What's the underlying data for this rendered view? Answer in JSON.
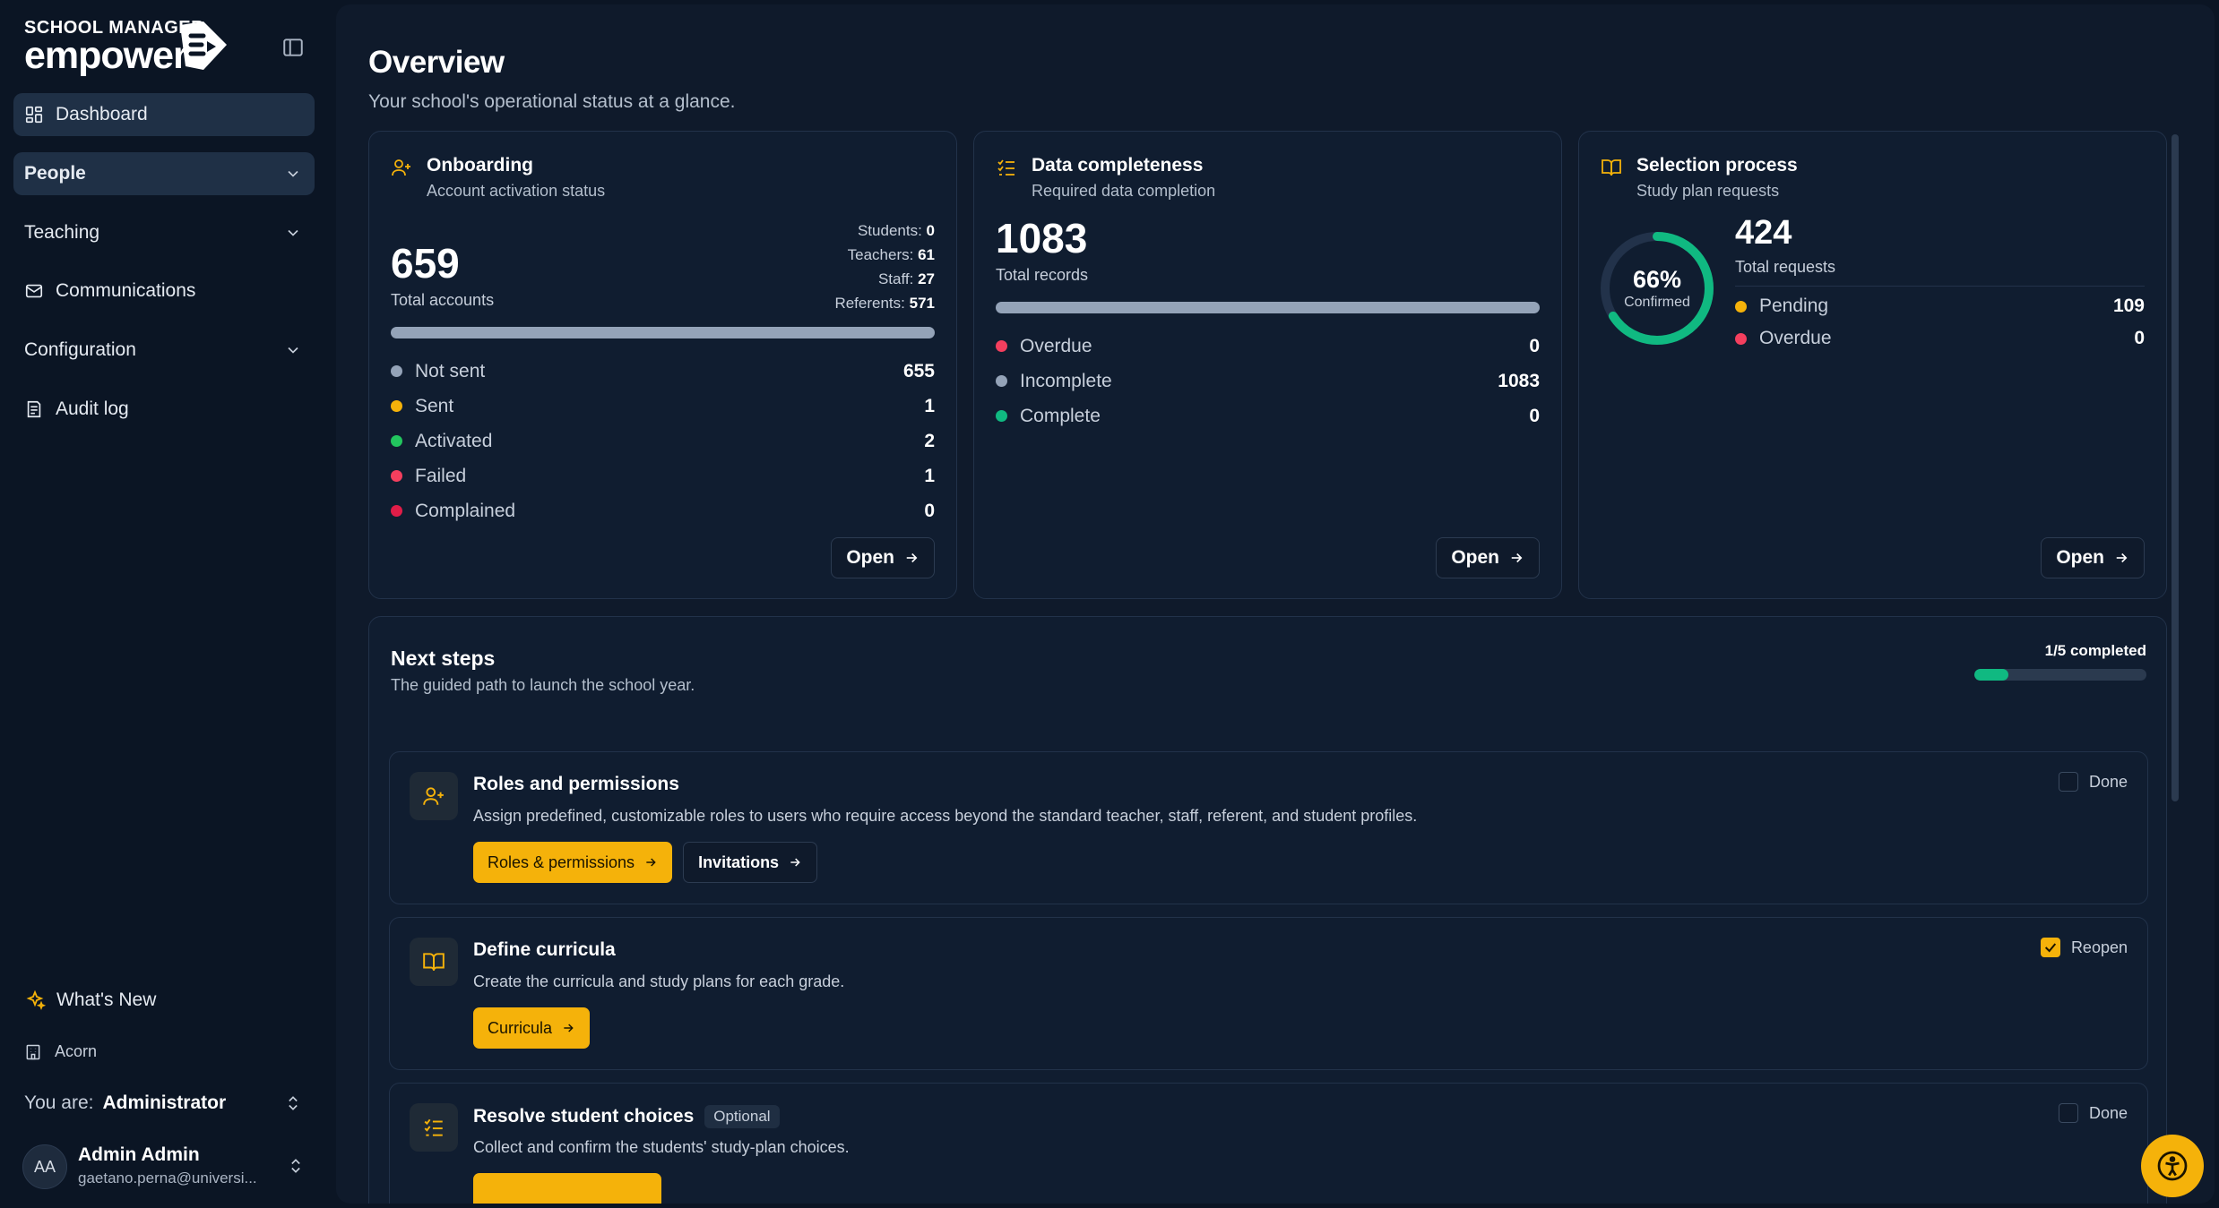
{
  "brand": {
    "top": "SCHOOL MANAGER",
    "main": "empower"
  },
  "sidebar": {
    "items": [
      {
        "label": "Dashboard"
      },
      {
        "label": "People"
      },
      {
        "label": "Teaching"
      },
      {
        "label": "Communications"
      },
      {
        "label": "Configuration"
      },
      {
        "label": "Audit log"
      }
    ],
    "whats_new": "What's New",
    "school": "Acorn",
    "role_label": "You are:",
    "role_value": "Administrator",
    "user": {
      "initials": "AA",
      "name": "Admin Admin",
      "email": "gaetano.perna@universi..."
    }
  },
  "page": {
    "title": "Overview",
    "subtitle": "Your school's operational status at a glance."
  },
  "onboarding": {
    "title": "Onboarding",
    "subtitle": "Account activation status",
    "total": "659",
    "total_label": "Total accounts",
    "breakdown": [
      {
        "label": "Students:",
        "value": "0"
      },
      {
        "label": "Teachers:",
        "value": "61"
      },
      {
        "label": "Staff:",
        "value": "27"
      },
      {
        "label": "Referents:",
        "value": "571"
      }
    ],
    "legend": [
      {
        "label": "Not sent",
        "value": "655",
        "color": "#94a3b8"
      },
      {
        "label": "Sent",
        "value": "1",
        "color": "#f5b20a"
      },
      {
        "label": "Activated",
        "value": "2",
        "color": "#22c55e"
      },
      {
        "label": "Failed",
        "value": "1",
        "color": "#f43f5e"
      },
      {
        "label": "Complained",
        "value": "0",
        "color": "#e11d48"
      }
    ],
    "open": "Open"
  },
  "data_completeness": {
    "title": "Data completeness",
    "subtitle": "Required data completion",
    "total": "1083",
    "total_label": "Total records",
    "legend": [
      {
        "label": "Overdue",
        "value": "0",
        "color": "#f43f5e"
      },
      {
        "label": "Incomplete",
        "value": "1083",
        "color": "#94a3b8"
      },
      {
        "label": "Complete",
        "value": "0",
        "color": "#10b981"
      }
    ],
    "open": "Open"
  },
  "selection": {
    "title": "Selection process",
    "subtitle": "Study plan requests",
    "percent": "66%",
    "percent_value": 0.66,
    "percent_label": "Confirmed",
    "total": "424",
    "total_label": "Total requests",
    "legend": [
      {
        "label": "Pending",
        "value": "109",
        "color": "#f5b20a"
      },
      {
        "label": "Overdue",
        "value": "0",
        "color": "#f43f5e"
      }
    ],
    "open": "Open"
  },
  "next_steps": {
    "title": "Next steps",
    "subtitle": "The guided path to launch the school year.",
    "progress_text": "1/5 completed",
    "progress_value": 0.2,
    "steps": [
      {
        "title": "Roles and permissions",
        "description": "Assign predefined, customizable roles to users who require access beyond the standard teacher, staff, referent, and student profiles.",
        "primary": "Roles & permissions",
        "secondary": "Invitations",
        "check_label": "Done"
      },
      {
        "title": "Define curricula",
        "description": "Create the curricula and study plans for each grade.",
        "primary": "Curricula",
        "check_label": "Reopen"
      },
      {
        "title": "Resolve student choices",
        "badge": "Optional",
        "description": "Collect and confirm the students' study-plan choices.",
        "check_label": "Done"
      }
    ]
  },
  "colors": {
    "accent": "#f5b20a",
    "success": "#10b981",
    "danger": "#f43f5e",
    "background": "#0b1524"
  },
  "icons": [
    "layout-grid-icon",
    "chevron-down-icon",
    "mail-icon",
    "audit-log-icon",
    "sparkles-icon",
    "building-icon",
    "chevrons-up-down-icon",
    "user-plus-icon",
    "list-checks-icon",
    "book-open-icon",
    "arrow-right-icon",
    "accessibility-icon",
    "sidebar-toggle-icon"
  ]
}
